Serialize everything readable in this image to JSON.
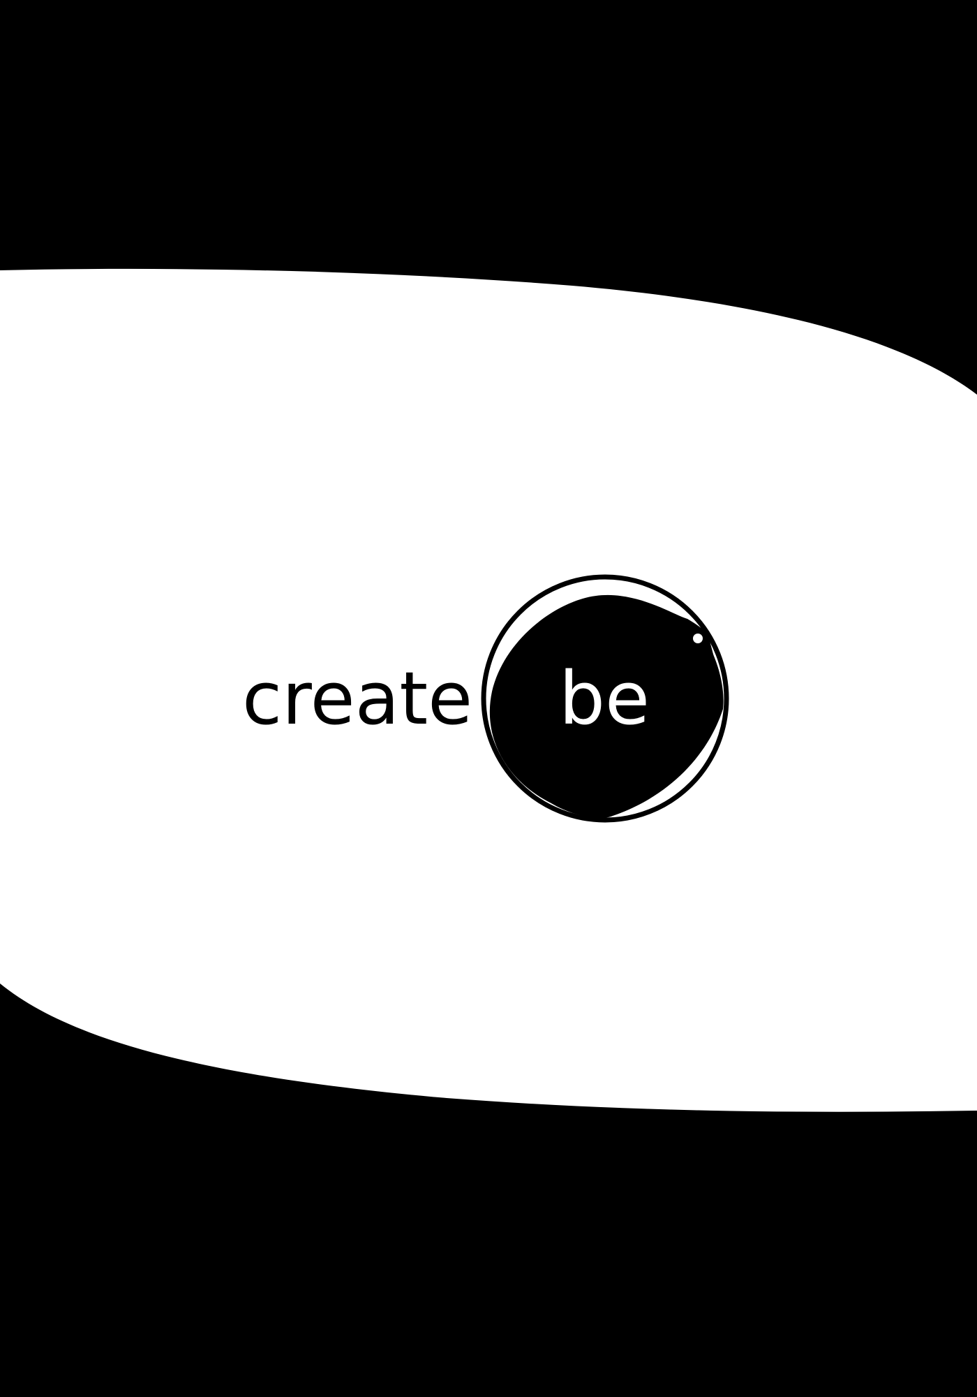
{
  "poster": {
    "word_left": "create",
    "word_right": "be"
  },
  "colors": {
    "background": "#000000",
    "band": "#ffffff",
    "text_left": "#000000",
    "text_right": "#ffffff",
    "bubble": "#000000",
    "highlight": "#ffffff"
  },
  "icons": {
    "bubble": "bubble-icon"
  }
}
